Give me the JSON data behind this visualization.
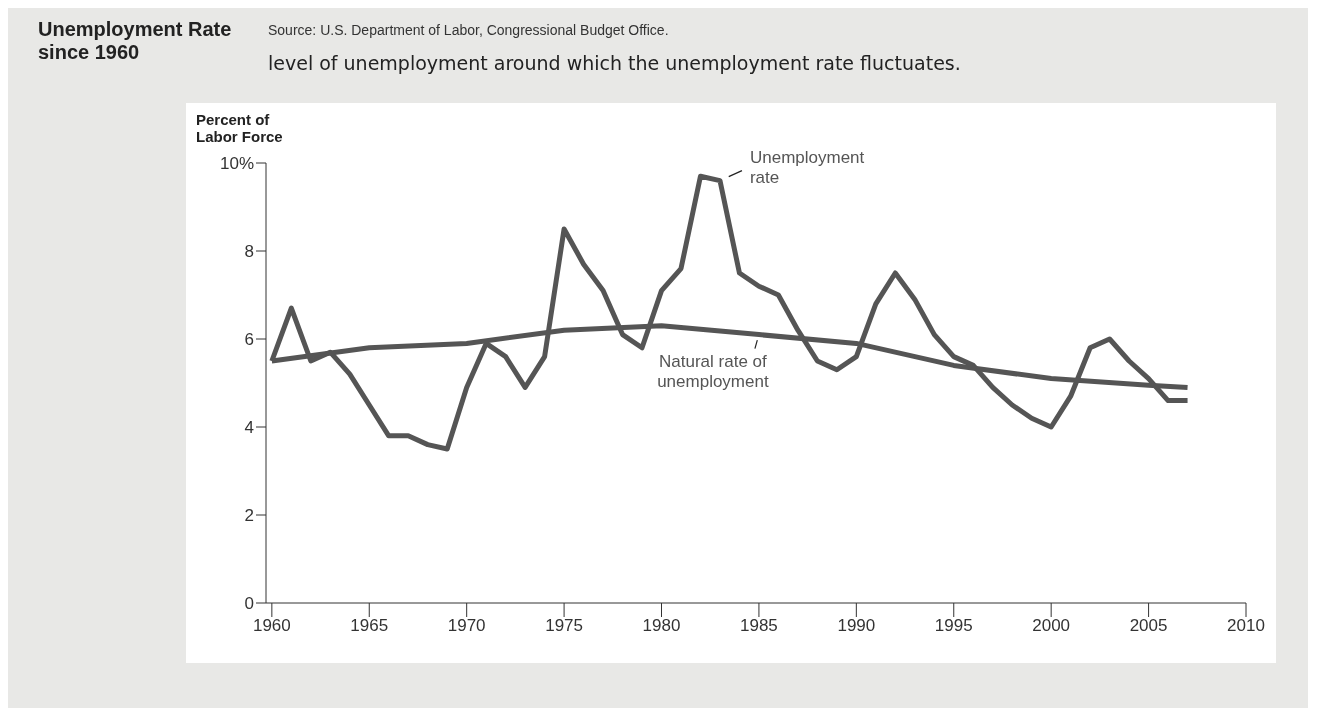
{
  "chart_data": {
    "type": "line",
    "title": "Unemployment Rate since 1960",
    "ylabel": "Percent of Labor Force",
    "annotations": [
      "Source: U.S. Department of Labor, Congressional Budget Office.",
      "level of unemployment around which the unemployment rate fluctuates."
    ],
    "xlim": [
      1959.7,
      2010
    ],
    "xticks": [
      1960,
      1965,
      1970,
      1975,
      1980,
      1985,
      1990,
      1995,
      2000,
      2005,
      2010
    ],
    "ylim": [
      0,
      10
    ],
    "yticks": [
      0,
      2,
      4,
      6,
      8,
      {
        "value": 10,
        "label": "10%"
      }
    ],
    "grid": false,
    "legend": false,
    "marker": "none",
    "line_style": "solid",
    "series": [
      {
        "name": "Unemployment rate",
        "color": "#555555",
        "x": [
          1960,
          1961,
          1962,
          1963,
          1964,
          1965,
          1966,
          1967,
          1968,
          1969,
          1970,
          1971,
          1972,
          1973,
          1974,
          1975,
          1976,
          1977,
          1978,
          1979,
          1980,
          1981,
          1982,
          1983,
          1984,
          1985,
          1986,
          1987,
          1988,
          1989,
          1990,
          1991,
          1992,
          1993,
          1994,
          1995,
          1996,
          1997,
          1998,
          1999,
          2000,
          2001,
          2002,
          2003,
          2004,
          2005,
          2006,
          2007
        ],
        "values": [
          5.5,
          6.7,
          5.5,
          5.7,
          5.2,
          4.5,
          3.8,
          3.8,
          3.6,
          3.5,
          4.9,
          5.9,
          5.6,
          4.9,
          5.6,
          8.5,
          7.7,
          7.1,
          6.1,
          5.8,
          7.1,
          7.6,
          9.7,
          9.6,
          7.5,
          7.2,
          7.0,
          6.2,
          5.5,
          5.3,
          5.6,
          6.8,
          7.5,
          6.9,
          6.1,
          5.6,
          5.4,
          4.9,
          4.5,
          4.2,
          4.0,
          4.7,
          5.8,
          6.0,
          5.5,
          5.1,
          4.6,
          4.6
        ]
      },
      {
        "name": "Natural rate of unemployment",
        "color": "#555555",
        "x": [
          1960,
          1965,
          1970,
          1975,
          1980,
          1985,
          1990,
          1995,
          2000,
          2005,
          2007
        ],
        "values": [
          5.5,
          5.8,
          5.9,
          6.2,
          6.3,
          6.1,
          5.9,
          5.4,
          5.1,
          4.95,
          4.9
        ]
      }
    ]
  }
}
